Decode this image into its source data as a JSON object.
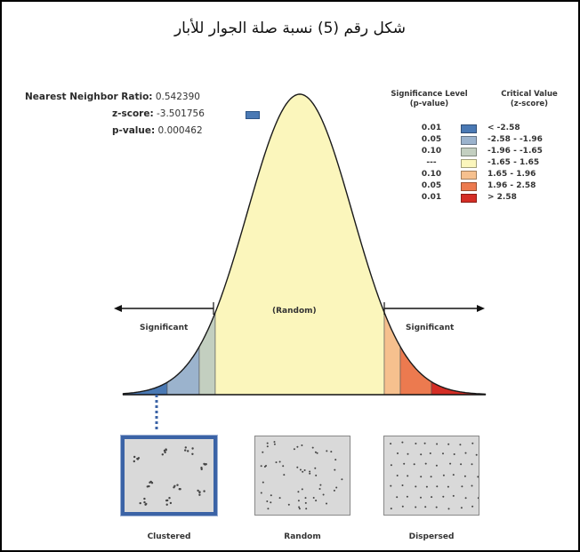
{
  "title": "شكل رقم (5) نسبة صلة الجوار للأبار",
  "stats": {
    "nn_label": "Nearest Neighbor Ratio:",
    "nn_value": "0.542390",
    "z_label": "z-score:",
    "z_value": "-3.501756",
    "p_label": "p-value:",
    "p_value": "0.000462"
  },
  "legend": {
    "sig_header_line1": "Significance Level",
    "sig_header_line2": "(p-value)",
    "crit_header_line1": "Critical Value",
    "crit_header_line2": "(z-score)",
    "rows": [
      {
        "p": "0.01",
        "color": "#4a79b4",
        "range": "< -2.58"
      },
      {
        "p": "0.05",
        "color": "#9bb3cd",
        "range": "-2.58 - -1.96"
      },
      {
        "p": "0.10",
        "color": "#c3cfc0",
        "range": "-1.96 - -1.65"
      },
      {
        "p": "---",
        "color": "#fbf6bc",
        "range": "-1.65 - 1.65"
      },
      {
        "p": "0.10",
        "color": "#f6c08e",
        "range": "1.65 - 1.96"
      },
      {
        "p": "0.05",
        "color": "#ec7a4f",
        "range": "1.96 - 2.58"
      },
      {
        "p": "0.01",
        "color": "#d42d25",
        "range": "> 2.58"
      }
    ]
  },
  "curve": {
    "random_label": "(Random)",
    "sig_left": "Significant",
    "sig_right": "Significant",
    "z_score": -3.501756
  },
  "patterns": {
    "clustered": "Clustered",
    "random": "Random",
    "dispersed": "Dispersed"
  }
}
